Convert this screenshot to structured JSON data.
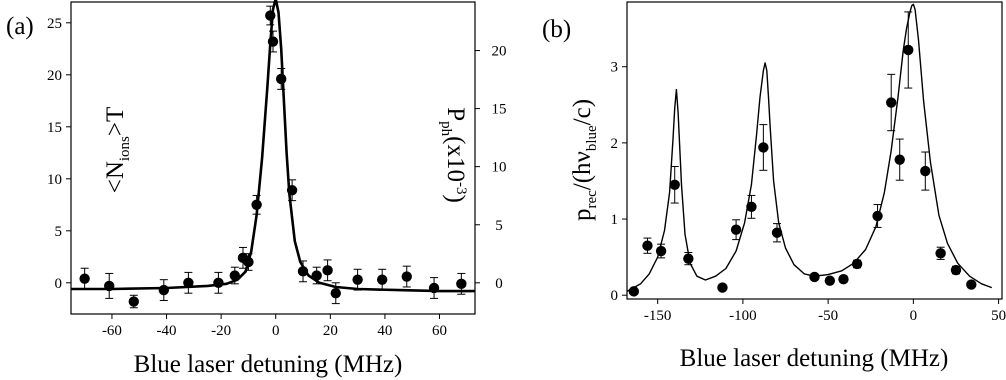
{
  "chart_data": [
    {
      "type": "scatter",
      "panel_label": "(a)",
      "xlabel": "Blue laser detuning (MHz)",
      "xlim": [
        -75,
        73
      ],
      "x_ticks": [
        -60,
        -40,
        -20,
        0,
        20,
        40,
        60
      ],
      "ylabel_left": {
        "main": "<N",
        "sub": "ions",
        "tail": ">T"
      },
      "ylim_left": [
        -3,
        27
      ],
      "y_ticks_left": [
        0,
        5,
        10,
        15,
        20,
        25
      ],
      "ylabel_right": {
        "main": "P",
        "sub": "ph",
        "tail": "(x10",
        "sup": "-3",
        "close": ")"
      },
      "right_axis_ticks": [
        {
          "label": "0",
          "left_value": 0
        },
        {
          "label": "5",
          "left_value": 5.58
        },
        {
          "label": "10",
          "left_value": 11.17
        },
        {
          "label": "15",
          "left_value": 16.75
        },
        {
          "label": "20",
          "left_value": 22.33
        }
      ],
      "series": [
        {
          "kind": "points",
          "x": [
            -70,
            -61,
            -52,
            -41,
            -32,
            -21,
            -15,
            -12,
            -10,
            -7,
            -2,
            -1,
            2,
            6,
            10,
            15,
            19,
            22,
            30,
            39,
            48,
            58,
            68
          ],
          "y": [
            0.4,
            -0.3,
            -1.8,
            -0.7,
            0,
            0,
            0.7,
            2.4,
            2.0,
            7.5,
            25.7,
            23.2,
            19.6,
            8.9,
            1.1,
            0.7,
            1.2,
            -1.0,
            0.3,
            0.3,
            0.6,
            -0.5,
            -0.1
          ],
          "err": [
            1.0,
            1.2,
            0.6,
            1.0,
            1.0,
            1.0,
            0.8,
            1.0,
            0.8,
            0.9,
            0.9,
            1.0,
            1.0,
            1.0,
            1.0,
            0.8,
            1.0,
            1.0,
            1.0,
            1.0,
            1.0,
            1.0,
            1.0
          ]
        },
        {
          "kind": "line",
          "x": [
            -75,
            -60,
            -40,
            -25,
            -18,
            -14,
            -11,
            -9,
            -7,
            -5,
            -3,
            -2,
            -1,
            0,
            1,
            2,
            3,
            4,
            5,
            7,
            9,
            12,
            16,
            22,
            30,
            45,
            60,
            73
          ],
          "y": [
            -0.6,
            -0.6,
            -0.5,
            -0.3,
            -0.1,
            0.3,
            1.1,
            3.0,
            6.5,
            12.0,
            19.0,
            23.0,
            26.3,
            27.3,
            26.0,
            22.5,
            17.5,
            12.5,
            8.5,
            4.0,
            2.0,
            0.7,
            0.0,
            -0.4,
            -0.6,
            -0.7,
            -0.8,
            -0.8
          ]
        }
      ]
    },
    {
      "type": "scatter",
      "panel_label": "(b)",
      "xlabel": "Blue laser detuning (MHz)",
      "xlim": [
        -168,
        52
      ],
      "x_ticks": [
        -150,
        -100,
        -50,
        0,
        50
      ],
      "ylabel": {
        "main": "p",
        "sub": "rec",
        "mid": "/(hν",
        "sub2": "blue",
        "tail": "/c)"
      },
      "ylim": [
        -0.05,
        3.85
      ],
      "y_ticks": [
        0,
        1,
        2,
        3
      ],
      "series": [
        {
          "kind": "points",
          "x": [
            -164,
            -156,
            -148,
            -140,
            -132,
            -112,
            -104,
            -95,
            -88,
            -80,
            -58,
            -49,
            -41,
            -33,
            -21,
            -13,
            -8,
            -3,
            7,
            16,
            25,
            34,
            42
          ],
          "y": [
            0.05,
            0.65,
            0.58,
            1.45,
            0.48,
            0.1,
            0.86,
            1.16,
            1.94,
            0.82,
            0.24,
            0.19,
            0.21,
            0.41,
            1.04,
            2.53,
            1.78,
            3.22,
            1.63,
            0.55,
            0.33,
            0.14,
            null
          ],
          "err": [
            0,
            0.1,
            0.09,
            0.24,
            0.08,
            0,
            0.13,
            0.15,
            0.3,
            0.12,
            0.03,
            0.03,
            0.04,
            0.05,
            0.15,
            0.37,
            0.27,
            0.5,
            0.25,
            0.08,
            0.05,
            0,
            0
          ]
        },
        {
          "kind": "line",
          "x": [
            -168,
            -160,
            -155,
            -150,
            -146,
            -143,
            -141,
            -140,
            -139,
            -138,
            -136,
            -134,
            -131,
            -127,
            -122,
            -116,
            -110,
            -104,
            -99,
            -95,
            -92,
            -90,
            -88,
            -87,
            -86,
            -85,
            -84,
            -82,
            -79,
            -75,
            -70,
            -64,
            -58,
            -50,
            -42,
            -35,
            -28,
            -22,
            -17,
            -13,
            -9,
            -6,
            -4,
            -2,
            -1,
            0,
            1,
            3,
            6,
            10,
            15,
            20,
            26,
            33,
            40,
            46
          ],
          "y": [
            0.05,
            0.15,
            0.28,
            0.5,
            0.85,
            1.35,
            2.05,
            2.45,
            2.7,
            2.4,
            1.45,
            0.8,
            0.42,
            0.25,
            0.2,
            0.25,
            0.35,
            0.58,
            0.95,
            1.45,
            2.1,
            2.6,
            2.95,
            3.05,
            2.95,
            2.6,
            2.2,
            1.5,
            0.95,
            0.62,
            0.4,
            0.28,
            0.25,
            0.27,
            0.32,
            0.42,
            0.6,
            0.9,
            1.35,
            1.9,
            2.6,
            3.2,
            3.5,
            3.72,
            3.8,
            3.82,
            3.75,
            3.35,
            2.55,
            1.75,
            1.05,
            0.68,
            0.42,
            0.25,
            0.15,
            0.1
          ]
        }
      ]
    }
  ]
}
